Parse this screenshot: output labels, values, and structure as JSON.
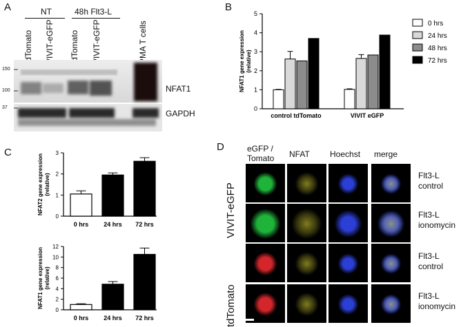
{
  "panel_a": {
    "letter": "A",
    "group_nt": "NT",
    "group_flt3": "48h Flt3-L",
    "lanes": [
      "tdTomato",
      "VIVIT-eGFP",
      "tdTomato",
      "VIVIT-eGFP",
      "PMA T cells"
    ],
    "mw_markers": [
      "150",
      "100",
      "37"
    ],
    "band_labels": [
      "NFAT1",
      "GAPDH"
    ]
  },
  "panel_b": {
    "letter": "B"
  },
  "panel_c": {
    "letter": "C"
  },
  "panel_d": {
    "letter": "D",
    "column_headers": [
      "eGFP /\nTomato",
      "NFAT",
      "Hoechst",
      "merge"
    ],
    "group_labels": [
      "VIVIT-eGFP",
      "tdTomato"
    ],
    "row_labels": [
      "Flt3-L\ncontrol",
      "Flt3-L\nionomycin",
      "Flt3-L\ncontrol",
      "Flt3-L\nionomycin"
    ],
    "colors": {
      "green": "#1fb33a",
      "red": "#d2262b",
      "yellow": "#e8e23a",
      "blue": "#2b3fd6"
    }
  },
  "chart_data": [
    {
      "id": "B",
      "type": "bar",
      "categories": [
        "control tdTomato",
        "VIVIT eGFP"
      ],
      "series": [
        {
          "name": "0 hrs",
          "values": [
            1.0,
            1.02
          ],
          "err": [
            0.02,
            0.03
          ],
          "color": "#ffffff"
        },
        {
          "name": "24 hrs",
          "values": [
            2.62,
            2.65
          ],
          "err": [
            0.4,
            0.2
          ],
          "color": "#d9d9d9"
        },
        {
          "name": "48 hrs",
          "values": [
            2.52,
            2.83
          ],
          "err": [
            0,
            0
          ],
          "color": "#8c8c8c"
        },
        {
          "name": "72 hrs",
          "values": [
            3.7,
            3.88
          ],
          "err": [
            0,
            0
          ],
          "color": "#000000"
        }
      ],
      "ylabel": "NFAT1 gene expression\n(relative)",
      "ylim": [
        0,
        5
      ],
      "yticks": [
        "0",
        "1",
        "2",
        "3",
        "4",
        "5"
      ],
      "legend_position": "top-right"
    },
    {
      "id": "C-top",
      "type": "bar",
      "categories": [
        "0 hrs",
        "24 hrs",
        "72 hrs"
      ],
      "values": [
        1.05,
        1.95,
        2.6
      ],
      "err": [
        0.15,
        0.1,
        0.17
      ],
      "colors": [
        "#ffffff",
        "#000000",
        "#000000"
      ],
      "ylabel": "NFAT2  gene expression\n(relative)",
      "ylim": [
        0,
        3
      ],
      "yticks": [
        "0",
        "1",
        "2",
        "3"
      ]
    },
    {
      "id": "C-bottom",
      "type": "bar",
      "categories": [
        "0 hrs",
        "24 hrs",
        "72 hrs"
      ],
      "values": [
        1.0,
        4.85,
        10.5
      ],
      "err": [
        0.15,
        0.5,
        1.2
      ],
      "colors": [
        "#ffffff",
        "#000000",
        "#000000"
      ],
      "ylabel": "NFAT1  gene expression\n(relative)",
      "ylim": [
        0,
        12
      ],
      "yticks": [
        "0",
        "2",
        "4",
        "6",
        "8",
        "10",
        "12"
      ]
    }
  ]
}
